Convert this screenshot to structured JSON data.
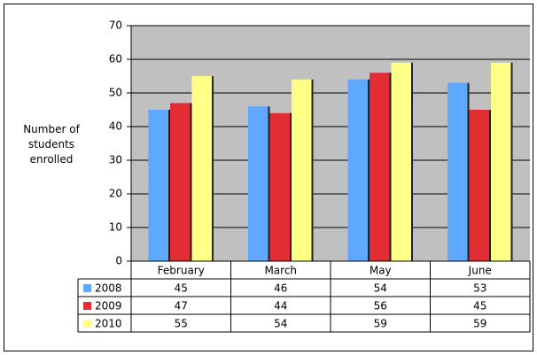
{
  "chart_data": {
    "type": "bar",
    "ylabel": "Number of students enrolled",
    "categories": [
      "February",
      "March",
      "May",
      "June"
    ],
    "series": [
      {
        "name": "2008",
        "color": "#5ea8ff",
        "values": [
          45,
          46,
          54,
          53
        ]
      },
      {
        "name": "2009",
        "color": "#e22d35",
        "values": [
          47,
          44,
          56,
          45
        ]
      },
      {
        "name": "2010",
        "color": "#ffff88",
        "values": [
          55,
          54,
          59,
          59
        ]
      }
    ],
    "ylim": [
      0,
      70
    ],
    "yticks": [
      0,
      10,
      20,
      30,
      40,
      50,
      60,
      70
    ],
    "grid": true,
    "plot_background": "#c0c0c0"
  }
}
